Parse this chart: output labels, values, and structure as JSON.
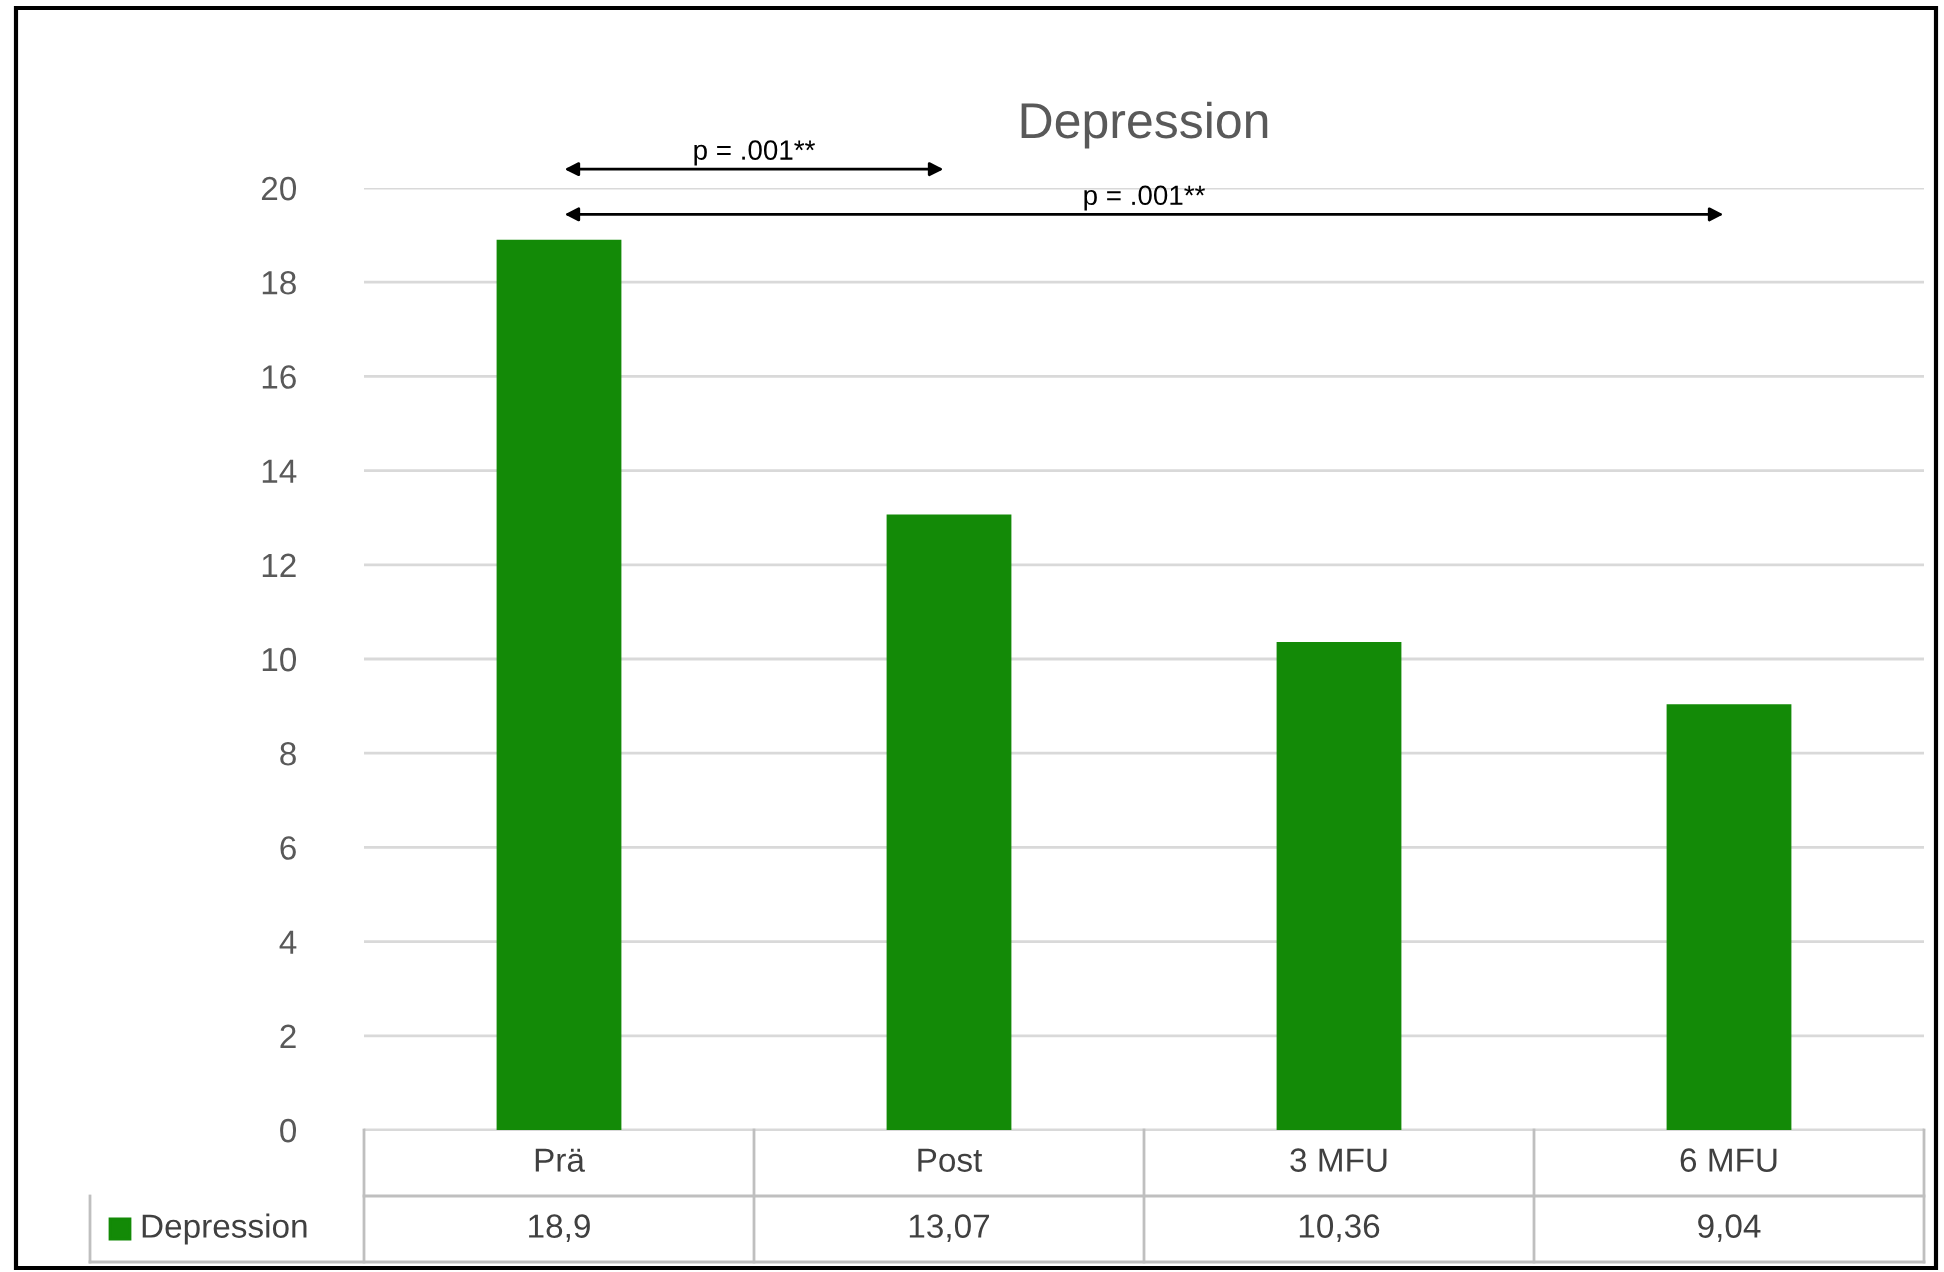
{
  "chart_data": {
    "type": "bar",
    "title": "Depression",
    "categories": [
      "Prä",
      "Post",
      "3 MFU",
      "6 MFU"
    ],
    "series": [
      {
        "name": "Depression",
        "color": "#138a07",
        "values": [
          18.9,
          13.07,
          10.36,
          9.04
        ],
        "value_labels": [
          "18,9",
          "13,07",
          "10,36",
          "9,04"
        ]
      }
    ],
    "ylim": [
      0,
      20
    ],
    "yticks": [
      0,
      2,
      4,
      6,
      8,
      10,
      12,
      14,
      16,
      18,
      20
    ],
    "grid": "y",
    "legend": "bottom",
    "annotations": [
      "p = .001**",
      "p = .001**"
    ]
  }
}
